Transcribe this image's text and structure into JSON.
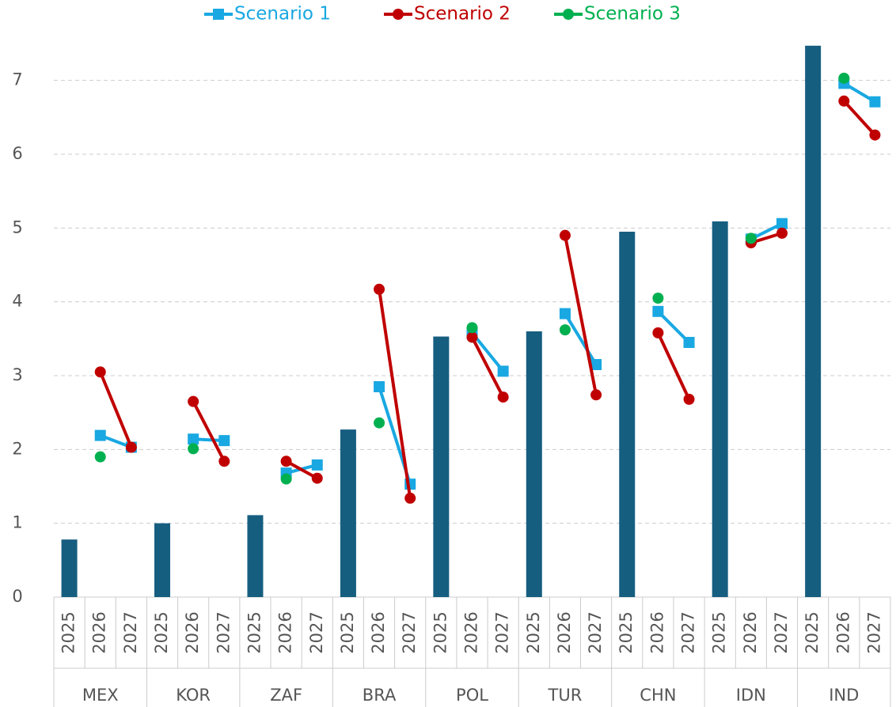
{
  "chart_data": {
    "type": "bar-line",
    "categories": [
      "2025",
      "2026",
      "2027",
      "2025",
      "2026",
      "2027",
      "2025",
      "2026",
      "2027",
      "2025",
      "2026",
      "2027",
      "2025",
      "2026",
      "2027",
      "2025",
      "2026",
      "2027",
      "2025",
      "2026",
      "2027",
      "2025",
      "2026",
      "2027",
      "2025",
      "2026",
      "2027"
    ],
    "groups": [
      "MEX",
      "KOR",
      "ZAF",
      "BRA",
      "POL",
      "TUR",
      "CHN",
      "IDN",
      "IND"
    ],
    "series": [
      {
        "type": "bar",
        "color": "#165e80",
        "values": [
          0.78,
          null,
          null,
          1.0,
          null,
          null,
          1.11,
          null,
          null,
          2.27,
          null,
          null,
          3.53,
          null,
          null,
          3.6,
          null,
          null,
          4.95,
          null,
          null,
          5.09,
          null,
          null,
          7.47,
          null,
          null
        ]
      },
      {
        "name": "Scenario 1",
        "type": "line",
        "marker": "square",
        "color": "#19a8e2",
        "values": [
          null,
          2.19,
          2.03,
          null,
          2.14,
          2.12,
          null,
          1.68,
          1.79,
          null,
          2.85,
          1.53,
          null,
          3.58,
          3.06,
          null,
          3.84,
          3.15,
          null,
          3.87,
          3.45,
          null,
          4.85,
          5.06,
          null,
          6.96,
          6.71
        ]
      },
      {
        "name": "Scenario 2",
        "type": "line",
        "marker": "circle",
        "color": "#c00000",
        "values": [
          null,
          3.05,
          2.03,
          null,
          2.65,
          1.84,
          null,
          1.84,
          1.61,
          null,
          4.17,
          1.34,
          null,
          3.52,
          2.71,
          null,
          4.9,
          2.74,
          null,
          3.58,
          2.68,
          null,
          4.8,
          4.93,
          null,
          6.72,
          6.26
        ]
      },
      {
        "name": "Scenario 3",
        "type": "line",
        "marker": "circle",
        "color": "#00b050",
        "values": [
          null,
          1.9,
          null,
          null,
          2.01,
          null,
          null,
          1.6,
          null,
          null,
          2.36,
          null,
          null,
          3.65,
          null,
          null,
          3.62,
          null,
          null,
          4.05,
          null,
          null,
          4.86,
          null,
          null,
          7.03,
          null
        ]
      }
    ],
    "ylim": [
      0,
      7.5
    ],
    "yticks": [
      0,
      1,
      2,
      3,
      4,
      5,
      6,
      7
    ],
    "grid": true,
    "legend": "top"
  }
}
